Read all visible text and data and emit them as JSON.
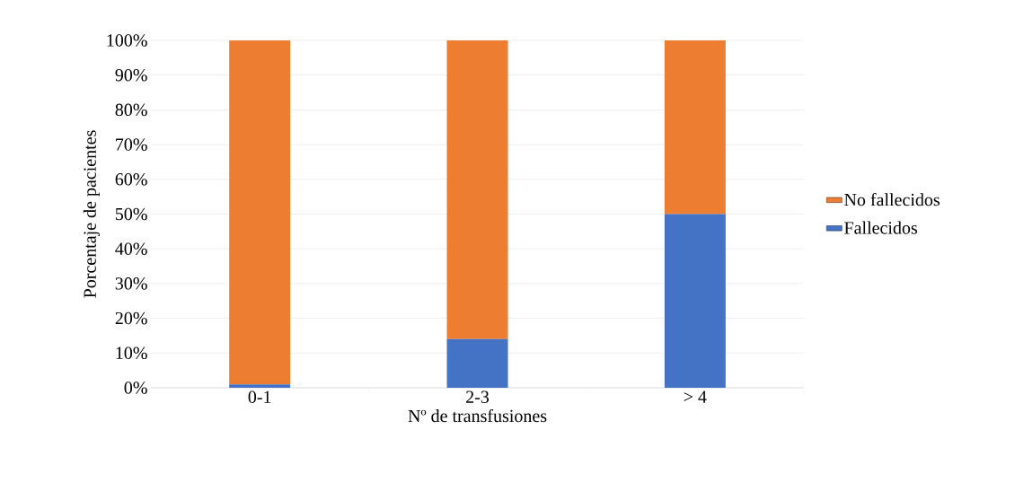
{
  "chart_data": {
    "type": "bar",
    "stacked": true,
    "xlabel": "Nº de transfusiones",
    "ylabel": "Porcentaje de pacientes",
    "categories": [
      "0-1",
      "2-3",
      "> 4"
    ],
    "series": [
      {
        "name": "Fallecidos",
        "color": "#4472c4",
        "values": [
          1,
          14,
          50
        ]
      },
      {
        "name": "No fallecidos",
        "color": "#ed7d31",
        "values": [
          99,
          86,
          50
        ]
      }
    ],
    "ylim": [
      0,
      100
    ],
    "yticks": [
      {
        "value": 0,
        "label": "0%"
      },
      {
        "value": 10,
        "label": "10%"
      },
      {
        "value": 20,
        "label": "20%"
      },
      {
        "value": 30,
        "label": "30%"
      },
      {
        "value": 40,
        "label": "40%"
      },
      {
        "value": 50,
        "label": "50%"
      },
      {
        "value": 60,
        "label": "60%"
      },
      {
        "value": 70,
        "label": "70%"
      },
      {
        "value": 80,
        "label": "80%"
      },
      {
        "value": 90,
        "label": "90%"
      },
      {
        "value": 100,
        "label": "100%"
      }
    ],
    "grid": "y",
    "legend": "right"
  }
}
